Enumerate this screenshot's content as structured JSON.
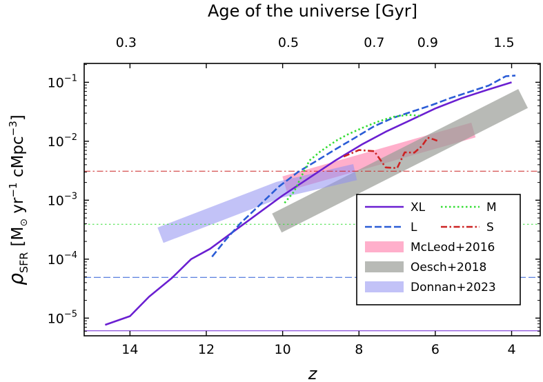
{
  "chart_data": {
    "type": "line",
    "title": "",
    "xlabel": "z",
    "ylabel_main": "ρ",
    "ylabel_sub": "SFR",
    "ylabel_units_parts": [
      "[M",
      "⊙",
      " yr",
      "−1",
      " cMpc",
      "−3",
      "]"
    ],
    "top_xlabel": "Age of the universe  [Gyr]",
    "xlim": [
      15.2,
      3.25
    ],
    "ylim_log10": [
      -5.3,
      -0.68
    ],
    "yscale": "log",
    "x_ticks": [
      14,
      12,
      10,
      8,
      6,
      4
    ],
    "x_tick_labels": [
      "14",
      "12",
      "10",
      "8",
      "6",
      "4"
    ],
    "y_ticks_log10": [
      -5,
      -4,
      -3,
      -2,
      -1
    ],
    "y_tick_labels": [
      {
        "base": "10",
        "exp": "−5"
      },
      {
        "base": "10",
        "exp": "−4"
      },
      {
        "base": "10",
        "exp": "−3"
      },
      {
        "base": "10",
        "exp": "−2"
      },
      {
        "base": "10",
        "exp": "−1"
      }
    ],
    "top_ticks": [
      {
        "label": "0.3",
        "z": 14.1
      },
      {
        "label": "0.5",
        "z": 9.85
      },
      {
        "label": "0.7",
        "z": 7.6
      },
      {
        "label": "0.9",
        "z": 6.2
      },
      {
        "label": "1.5",
        "z": 4.2
      }
    ],
    "series": [
      {
        "name": "XL",
        "style": "solid",
        "color": "#6a1fd1",
        "points": [
          [
            14.65,
            7.7e-06
          ],
          [
            14.0,
            1.08e-05
          ],
          [
            13.5,
            2.3e-05
          ],
          [
            12.9,
            4.8e-05
          ],
          [
            12.4,
            0.0001
          ],
          [
            11.9,
            0.00015
          ],
          [
            11.3,
            0.00029
          ],
          [
            10.7,
            0.00056
          ],
          [
            10.0,
            0.0012
          ],
          [
            9.3,
            0.0024
          ],
          [
            8.6,
            0.0048
          ],
          [
            7.9,
            0.009
          ],
          [
            7.3,
            0.0145
          ],
          [
            6.7,
            0.022
          ],
          [
            6.0,
            0.036
          ],
          [
            5.3,
            0.054
          ],
          [
            4.65,
            0.074
          ],
          [
            4.0,
            0.1
          ]
        ]
      },
      {
        "name": "L",
        "style": "dashed",
        "color": "#2a5cd6",
        "points": [
          [
            11.85,
            0.00011
          ],
          [
            11.5,
            0.00021
          ],
          [
            11.1,
            0.00041
          ],
          [
            10.6,
            0.00083
          ],
          [
            10.1,
            0.0017
          ],
          [
            9.6,
            0.003
          ],
          [
            9.1,
            0.0047
          ],
          [
            8.6,
            0.0074
          ],
          [
            8.1,
            0.0115
          ],
          [
            7.6,
            0.018
          ],
          [
            7.1,
            0.025
          ],
          [
            6.6,
            0.032
          ],
          [
            6.1,
            0.041
          ],
          [
            5.6,
            0.054
          ],
          [
            5.1,
            0.069
          ],
          [
            4.6,
            0.088
          ],
          [
            4.15,
            0.127
          ],
          [
            3.9,
            0.13
          ]
        ]
      },
      {
        "name": "M",
        "style": "dotted",
        "color": "#33dd33",
        "points": [
          [
            9.95,
            0.0009
          ],
          [
            9.7,
            0.0014
          ],
          [
            9.5,
            0.0026
          ],
          [
            9.3,
            0.0047
          ],
          [
            9.0,
            0.0068
          ],
          [
            8.6,
            0.0102
          ],
          [
            8.3,
            0.013
          ],
          [
            7.9,
            0.017
          ],
          [
            7.5,
            0.0215
          ],
          [
            7.1,
            0.026
          ],
          [
            6.7,
            0.028
          ],
          [
            6.4,
            0.027
          ]
        ]
      },
      {
        "name": "S",
        "style": "dashdot",
        "color": "#cc2222",
        "points": [
          [
            8.4,
            0.0055
          ],
          [
            8.0,
            0.0071
          ],
          [
            7.6,
            0.0068
          ],
          [
            7.3,
            0.0036
          ],
          [
            7.0,
            0.0035
          ],
          [
            6.8,
            0.0065
          ],
          [
            6.55,
            0.0064
          ],
          [
            6.35,
            0.0083
          ],
          [
            6.2,
            0.0115
          ],
          [
            6.05,
            0.0108
          ],
          [
            5.95,
            0.0102
          ]
        ]
      }
    ],
    "bands": [
      {
        "name": "McLeod+2016",
        "color": "#ff7aa8",
        "opacity": 0.6,
        "points": [
          [
            9.95,
            0.0019
          ],
          [
            5.0,
            0.0155
          ]
        ],
        "width_dex": 0.26
      },
      {
        "name": "Oesch+2018",
        "color": "#9a9c97",
        "opacity": 0.7,
        "points": [
          [
            10.15,
            0.00041
          ],
          [
            3.7,
            0.053
          ]
        ],
        "width_dex": 0.36
      },
      {
        "name": "Donnan+2023",
        "color": "#9090f0",
        "opacity": 0.55,
        "points": [
          [
            13.2,
            0.000255
          ],
          [
            10.1,
            0.0015
          ],
          [
            8.1,
            0.003
          ]
        ],
        "width_dex": 0.28
      }
    ],
    "hlines": [
      {
        "name": "XL",
        "y": 6.1e-06,
        "style": "solid",
        "color": "#6a1fd1"
      },
      {
        "name": "L",
        "y": 4.9e-05,
        "style": "dashed",
        "color": "#2a5cd6"
      },
      {
        "name": "M",
        "y": 0.00039,
        "style": "dotted",
        "color": "#33dd33"
      },
      {
        "name": "S",
        "y": 0.0031,
        "style": "dashdot",
        "color": "#cc2222"
      }
    ],
    "legend": {
      "placement": "lower-right",
      "entries": [
        {
          "label": "XL",
          "kind": "line",
          "style": "solid",
          "color": "#6a1fd1"
        },
        {
          "label": "M",
          "kind": "line",
          "style": "dotted",
          "color": "#33dd33"
        },
        {
          "label": "L",
          "kind": "line",
          "style": "dashed",
          "color": "#2a5cd6"
        },
        {
          "label": "S",
          "kind": "line",
          "style": "dashdot",
          "color": "#cc2222"
        },
        {
          "label": "McLeod+2016",
          "kind": "patch",
          "color": "#ff7aa8",
          "opacity": 0.6
        },
        {
          "label": "Oesch+2018",
          "kind": "patch",
          "color": "#9a9c97",
          "opacity": 0.7
        },
        {
          "label": "Donnan+2023",
          "kind": "patch",
          "color": "#9090f0",
          "opacity": 0.55
        }
      ]
    }
  }
}
